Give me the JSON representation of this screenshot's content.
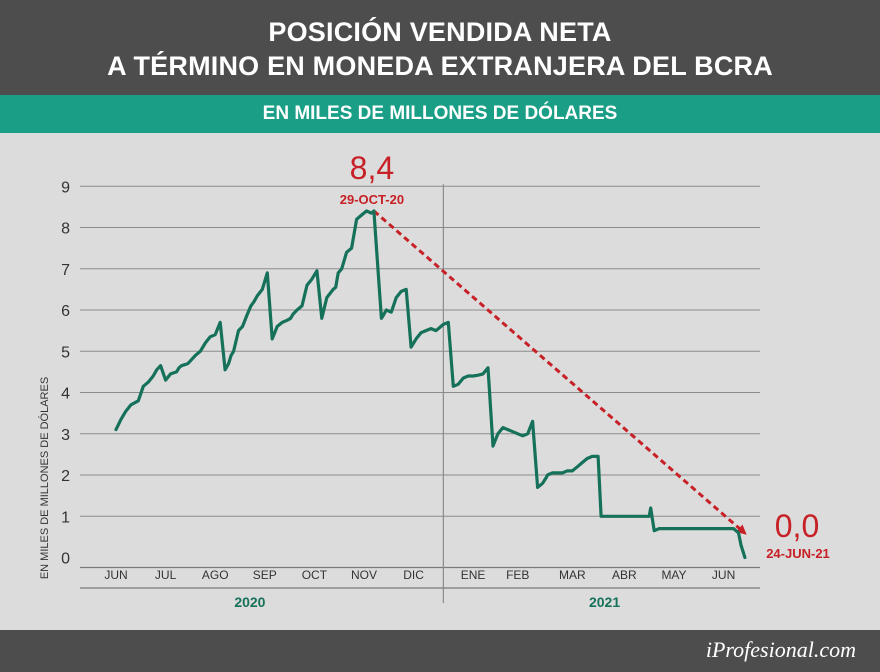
{
  "title": {
    "line1": "POSICIÓN VENDIDA NETA",
    "line2": "A TÉRMINO EN MONEDA EXTRANJERA DEL BCRA"
  },
  "subtitle": "EN MILES DE MILLONES DE DÓLARES",
  "brand": "iProfesional.com",
  "colors": {
    "header_bg": "#4d4d4d",
    "subheader_bg": "#1a9e86",
    "line": "#16715a",
    "trend": "#c72026",
    "background": "#dcdcdc",
    "grid": "#8c8c8c"
  },
  "chart_data": {
    "type": "line",
    "ylabel": "EN MILES DE MILLONES DE DÓLARES",
    "ylim": [
      0,
      9
    ],
    "yticks": [
      "0",
      "1",
      "2",
      "3",
      "4",
      "5",
      "6",
      "7",
      "8",
      "9"
    ],
    "month_labels": [
      "JUN",
      "JUL",
      "AGO",
      "SEP",
      "OCT",
      "NOV",
      "DIC",
      "ENE",
      "FEB",
      "MAR",
      "ABR",
      "MAY",
      "JUN"
    ],
    "year_labels": [
      "2020",
      "2021"
    ],
    "grid": true,
    "series": [
      {
        "name": "Posición vendida neta",
        "x_months": [
          0.0,
          0.1,
          0.2,
          0.3,
          0.45,
          0.55,
          0.65,
          0.75,
          0.82,
          0.9,
          1.0,
          1.1,
          1.22,
          1.27,
          1.32,
          1.45,
          1.6,
          1.7,
          1.8,
          1.9,
          2.0,
          2.1,
          2.2,
          2.27,
          2.32,
          2.37,
          2.47,
          2.55,
          2.65,
          2.72,
          2.75,
          2.78,
          2.85,
          2.95,
          3.05,
          3.15,
          3.25,
          3.35,
          3.45,
          3.52,
          3.57,
          3.65,
          3.75,
          3.85,
          3.95,
          4.05,
          4.15,
          4.25,
          4.38,
          4.43,
          4.48,
          4.55,
          4.65,
          4.75,
          4.85,
          4.95,
          5.05,
          5.15,
          5.2,
          5.35,
          5.38,
          5.45,
          5.55,
          5.65,
          5.75,
          5.85,
          5.95,
          6.05,
          6.15,
          6.25,
          6.35,
          6.45,
          6.5,
          6.55,
          6.6,
          6.7,
          6.8,
          6.9,
          7.0,
          7.1,
          7.2,
          7.3,
          7.4,
          7.5,
          7.6,
          7.65,
          7.7,
          7.8,
          7.9,
          8.0,
          8.1,
          8.2,
          8.3,
          8.4,
          8.5,
          8.6,
          8.68,
          8.7,
          8.8,
          8.9,
          9.0,
          9.1,
          9.2,
          9.3,
          9.4,
          9.5,
          9.6,
          9.72,
          9.78,
          9.85,
          9.9,
          10.0,
          10.1,
          10.2,
          10.3,
          10.4,
          10.5,
          10.6,
          10.7,
          10.75,
          10.78,
          10.85,
          10.95,
          11.05,
          11.15,
          11.25,
          11.35,
          11.45,
          11.5,
          11.55,
          11.65,
          11.8,
          11.95,
          12.05,
          12.15,
          12.25,
          12.35,
          12.45,
          12.55,
          12.6,
          12.68
        ],
        "values": [
          3.1,
          3.35,
          3.55,
          3.7,
          3.8,
          4.15,
          4.25,
          4.4,
          4.55,
          4.65,
          4.3,
          4.45,
          4.5,
          4.6,
          4.65,
          4.7,
          4.9,
          5.0,
          5.2,
          5.35,
          5.4,
          5.7,
          4.55,
          4.7,
          4.9,
          5.0,
          5.5,
          5.6,
          5.9,
          6.1,
          6.15,
          6.2,
          6.35,
          6.5,
          6.9,
          5.3,
          5.6,
          5.7,
          5.75,
          5.8,
          5.9,
          6.0,
          6.1,
          6.6,
          6.75,
          6.95,
          5.8,
          6.3,
          6.5,
          6.55,
          6.9,
          7.0,
          7.4,
          7.5,
          8.2,
          8.3,
          8.4,
          8.35,
          8.4,
          5.8,
          5.85,
          6.0,
          5.95,
          6.3,
          6.45,
          6.5,
          5.1,
          5.3,
          5.45,
          5.5,
          5.55,
          5.5,
          5.55,
          5.6,
          5.65,
          5.7,
          4.15,
          4.2,
          4.35,
          4.4,
          4.4,
          4.42,
          4.45,
          4.6,
          2.7,
          2.85,
          3.0,
          3.15,
          3.1,
          3.05,
          3.0,
          2.95,
          3.0,
          3.3,
          1.7,
          1.8,
          1.95,
          2.0,
          2.05,
          2.05,
          2.05,
          2.1,
          2.1,
          2.2,
          2.3,
          2.4,
          2.45,
          2.45,
          1.0,
          1.0,
          1.0,
          1.0,
          1.0,
          1.0,
          1.0,
          1.0,
          1.0,
          1.0,
          1.0,
          1.0,
          1.2,
          0.65,
          0.7,
          0.7,
          0.7,
          0.7,
          0.7,
          0.7,
          0.7,
          0.7,
          0.7,
          0.7,
          0.7,
          0.7,
          0.7,
          0.7,
          0.7,
          0.7,
          0.6,
          0.3,
          0.0
        ]
      }
    ],
    "annotations": [
      {
        "value": "8,4",
        "date": "29-OCT-20",
        "x_month": 5.2,
        "y": 8.4
      },
      {
        "value": "0,0",
        "date": "24-JUN-21",
        "x_month": 12.68,
        "y": 0.0
      }
    ]
  }
}
